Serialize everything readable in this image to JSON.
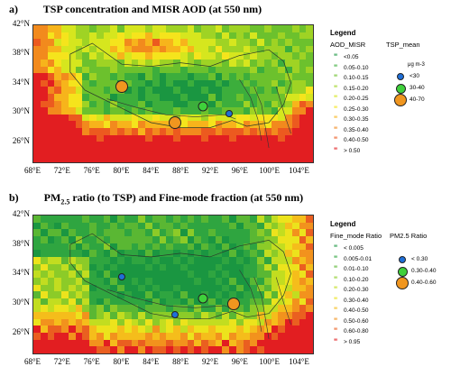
{
  "panels": [
    {
      "id": "a",
      "label": "a)",
      "title": "TSP concentration and MISR AOD (at 550 nm)",
      "legend": {
        "title": "Legend",
        "left_head": "AOD_MISR",
        "right_head": "TSP_mean",
        "unit": "μg m-3",
        "ranges": [
          {
            "label": "<0.05",
            "color": "#1a9641"
          },
          {
            "label": "0.05-0.10",
            "color": "#3cae3c"
          },
          {
            "label": "0.10-0.15",
            "color": "#6cc12d"
          },
          {
            "label": "0.15-0.20",
            "color": "#9fd324"
          },
          {
            "label": "0.20-0.25",
            "color": "#d6e61e"
          },
          {
            "label": "0.25-0.30",
            "color": "#f5e41c"
          },
          {
            "label": "0.30-0.35",
            "color": "#f7b41b"
          },
          {
            "label": "0.35-0.40",
            "color": "#f28a1d"
          },
          {
            "label": "0.40-0.50",
            "color": "#ec5a1f"
          },
          {
            "label": "> 0.50",
            "color": "#e21e21"
          }
        ],
        "symbols": [
          {
            "label": "<30",
            "color": "#1f6fd8",
            "size": 8
          },
          {
            "label": "30-40",
            "color": "#3fd13b",
            "size": 11
          },
          {
            "label": "40-70",
            "color": "#f0961f",
            "size": 14
          }
        ]
      },
      "stations": [
        {
          "name": "station-80e-34n",
          "lon": 80.0,
          "lat": 33.5,
          "class": 2
        },
        {
          "name": "station-87e-28n",
          "lon": 87.2,
          "lat": 28.5,
          "class": 2
        },
        {
          "name": "station-91e-31n",
          "lon": 91.0,
          "lat": 30.8,
          "class": 1
        },
        {
          "name": "station-95e-30n",
          "lon": 94.6,
          "lat": 29.8,
          "class": 0
        }
      ]
    },
    {
      "id": "b",
      "label": "b)",
      "title": "PM",
      "title_sub": "2.5",
      "title_rest": " ratio (to TSP) and Fine-mode fraction (at 550 nm)",
      "legend": {
        "title": "Legend",
        "left_head": "Fine_mode Ratio",
        "right_head": "PM2.5 Ratio",
        "ranges": [
          {
            "label": "< 0.005",
            "color": "#1a9641"
          },
          {
            "label": "0.005-0.01",
            "color": "#2fa540"
          },
          {
            "label": "0.01-0.10",
            "color": "#5ab733"
          },
          {
            "label": "0.10-0.20",
            "color": "#8ccb28"
          },
          {
            "label": "0.20-0.30",
            "color": "#c2dd20"
          },
          {
            "label": "0.30-0.40",
            "color": "#ece31c"
          },
          {
            "label": "0.40-0.50",
            "color": "#f5bd1b"
          },
          {
            "label": "0.50-0.60",
            "color": "#f2921d"
          },
          {
            "label": "0.60-0.80",
            "color": "#ea5f20"
          },
          {
            "label": "> 0.95",
            "color": "#e21e21"
          }
        ],
        "symbols": [
          {
            "label": "< 0.30",
            "color": "#1f6fd8",
            "size": 8
          },
          {
            "label": "0.30-0.40",
            "color": "#3fd13b",
            "size": 11
          },
          {
            "label": "0.40-0.60",
            "color": "#f0961f",
            "size": 14
          }
        ]
      },
      "stations": [
        {
          "name": "station-80e-34n",
          "lon": 80.0,
          "lat": 33.5,
          "class": 0
        },
        {
          "name": "station-87e-28n",
          "lon": 87.2,
          "lat": 28.3,
          "class": 0
        },
        {
          "name": "station-91e-31n",
          "lon": 91.0,
          "lat": 30.6,
          "class": 1
        },
        {
          "name": "station-95e-30n",
          "lon": 95.2,
          "lat": 29.8,
          "class": 2
        }
      ]
    }
  ],
  "axes": {
    "lat_ticks": [
      "42°N",
      "38°N",
      "34°N",
      "30°N",
      "26°N"
    ],
    "lat_values": [
      42,
      38,
      34,
      30,
      26
    ],
    "lon_ticks": [
      "68°E",
      "72°E",
      "76°E",
      "80°E",
      "84°E",
      "88°E",
      "92°E",
      "96°E",
      "100°E",
      "104°E"
    ],
    "lon_values": [
      68,
      72,
      76,
      80,
      84,
      88,
      92,
      96,
      100,
      104
    ],
    "lon_range": [
      68,
      106
    ],
    "lat_range": [
      23,
      42
    ]
  }
}
